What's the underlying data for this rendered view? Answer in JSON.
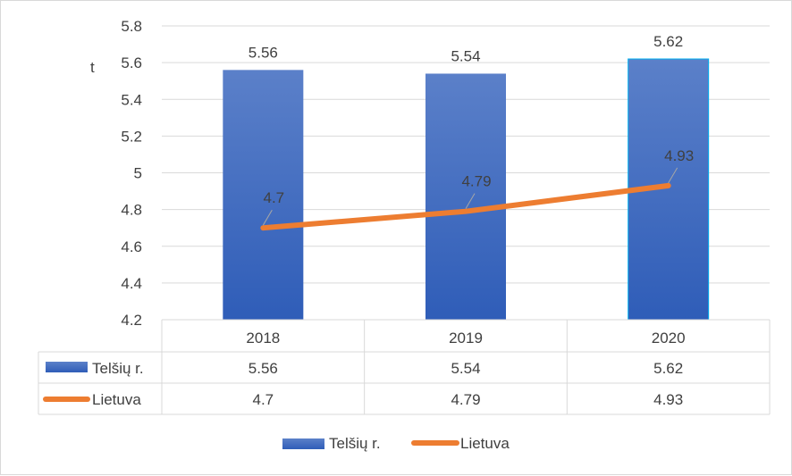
{
  "chart_data": {
    "type": "bar",
    "title": "",
    "ylabel": "t",
    "xlabel": "",
    "ylim": [
      4.2,
      5.8
    ],
    "yticks": [
      "5.8",
      "5.6",
      "5.4",
      "5.2",
      "5",
      "4.8",
      "4.6",
      "4.4",
      "4.2"
    ],
    "categories": [
      "2018",
      "2019",
      "2020"
    ],
    "series": [
      {
        "name": "Telšių r.",
        "type": "bar",
        "color": "#4472c4",
        "values": [
          5.56,
          5.54,
          5.62
        ],
        "labels": [
          "5.56",
          "5.54",
          "5.62"
        ]
      },
      {
        "name": "Lietuva",
        "type": "line",
        "color": "#ed7d31",
        "values": [
          4.7,
          4.79,
          4.93
        ],
        "labels": [
          "4.7",
          "4.79",
          "4.93"
        ]
      }
    ],
    "grid": true,
    "data_table": true,
    "legend": "bottom"
  }
}
